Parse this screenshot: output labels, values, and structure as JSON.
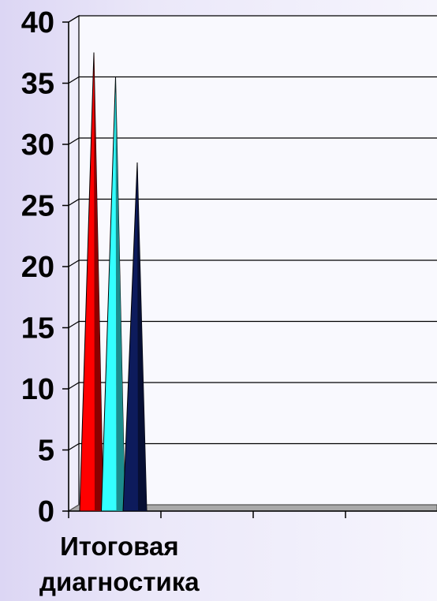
{
  "chart_data": {
    "type": "bar",
    "bar_shape": "cone",
    "title": "",
    "xlabel": "",
    "ylabel": "",
    "ylim": [
      0,
      40
    ],
    "yticks": [
      0,
      5,
      10,
      15,
      20,
      25,
      30,
      35,
      40
    ],
    "ytick_labels": [
      "0",
      "5",
      "10",
      "15",
      "20",
      "25",
      "30",
      "35",
      "40"
    ],
    "grid": true,
    "legend": "none",
    "categories": [
      "Итоговая диагностика",
      "",
      "",
      ""
    ],
    "category_label_lines": [
      "Итоговая",
      "диагностика"
    ],
    "series": [
      {
        "color": "#ff0000",
        "values": [
          37,
          0,
          0,
          0
        ]
      },
      {
        "color": "#33ffff",
        "values": [
          35,
          0,
          0,
          0
        ]
      },
      {
        "color": "#0d1b5c",
        "values": [
          28,
          0,
          0,
          0
        ]
      }
    ],
    "colors": {
      "grid": "#000000",
      "wall": "#f9f9fe",
      "floor": "#a9a9a9",
      "floor_edge": "#555555"
    }
  }
}
